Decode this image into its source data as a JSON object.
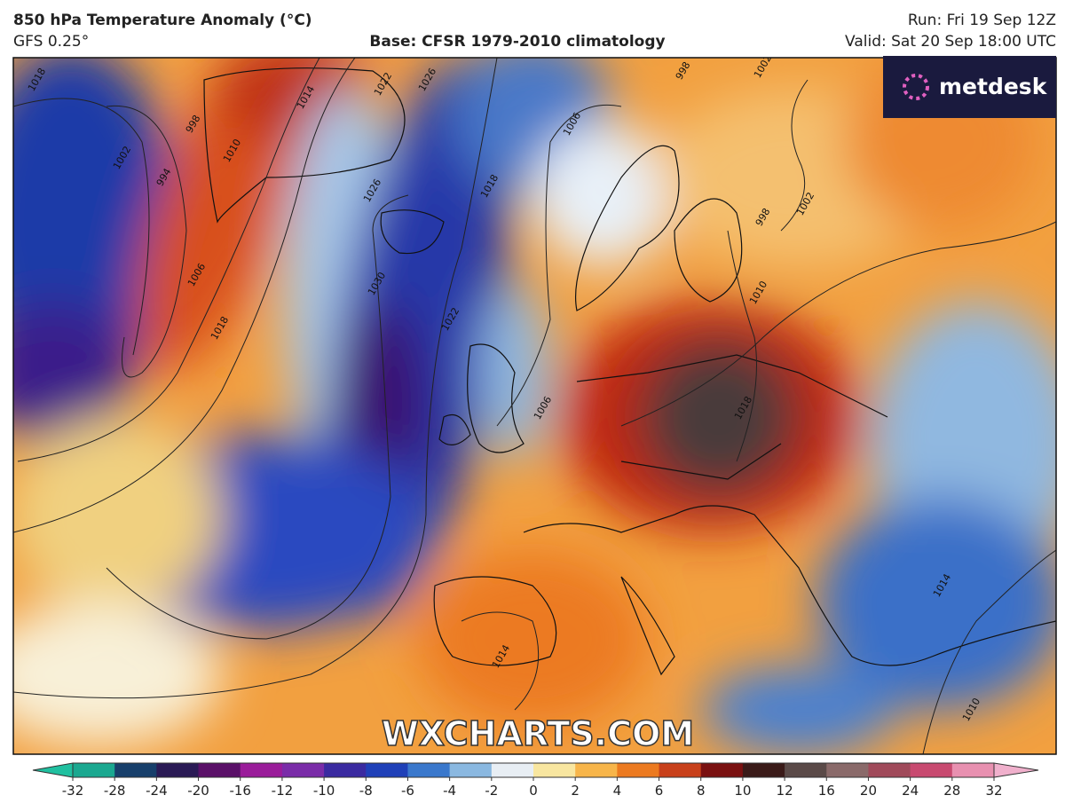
{
  "header": {
    "title": "850 hPa Temperature Anomaly (°C)",
    "model": "GFS 0.25°",
    "base": "Base: CFSR 1979-2010 climatology",
    "run": "Run: Fri 19 Sep 12Z",
    "valid": "Valid: Sat 20 Sep 18:00 UTC"
  },
  "logo": "metdesk",
  "watermark": "WXCHARTS.COM",
  "isobar_labels": [
    1018,
    994,
    1002,
    998,
    1010,
    1014,
    1022,
    1026,
    1026,
    1030,
    1006,
    1018,
    1022,
    1018,
    1006,
    998,
    1002,
    1010,
    1006,
    1018,
    1014,
    1014,
    1010,
    998,
    1002
  ],
  "colorbar": {
    "ticks": [
      -32,
      -28,
      -24,
      -20,
      -16,
      -12,
      -10,
      -8,
      -6,
      -4,
      -2,
      0,
      2,
      4,
      6,
      8,
      10,
      12,
      16,
      20,
      24,
      28,
      32
    ],
    "colors": [
      "#1aa890",
      "#173f6b",
      "#2a1a55",
      "#5a1068",
      "#9a1c9a",
      "#7a2ca8",
      "#3a2aa0",
      "#1f40b8",
      "#3a78cc",
      "#8ab8e0",
      "#e8eef4",
      "#f8e6a0",
      "#f7b54a",
      "#ec7a20",
      "#c8401a",
      "#7a1010",
      "#3a1a18",
      "#5a4a48",
      "#8a6a6a",
      "#a04a5a",
      "#c84a70",
      "#e890b0"
    ],
    "under_color": "#20c0a0",
    "over_color": "#f0b0cc"
  }
}
